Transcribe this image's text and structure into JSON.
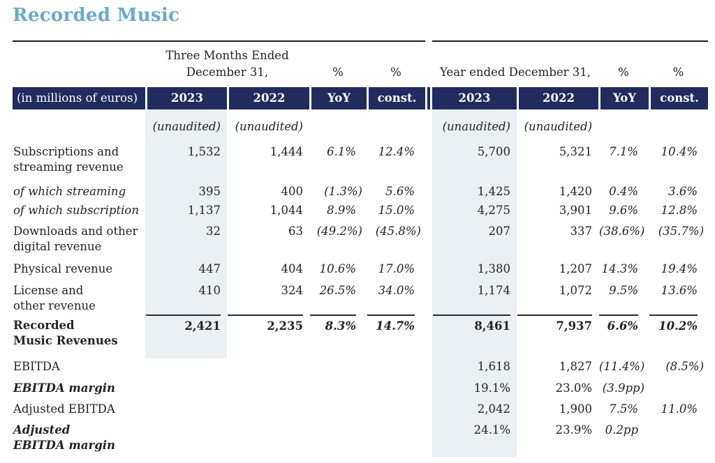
{
  "page": {
    "title": "Recorded Music"
  },
  "colors": {
    "accent_title": "#69AACA",
    "header_navy": "#222B5E",
    "column_highlight": "#EBF0F5",
    "text": "#232329"
  },
  "table": {
    "row_label_header": "(in millions of euros)",
    "quarter": {
      "period_label": "Three Months Ended\nDecember 31,",
      "pct_label_1": "%",
      "pct_label_2": "%",
      "col_headers": [
        "2023",
        "2022",
        "YoY",
        "const."
      ]
    },
    "year": {
      "period_label": "Year ended December 31,",
      "pct_label_1": "%",
      "pct_label_2": "%",
      "col_headers": [
        "2023",
        "2022",
        "YoY",
        "const."
      ]
    },
    "unaudited_label": "(unaudited)",
    "rows": [
      {
        "label": "Subscriptions and\nstreaming revenue",
        "style": "normal",
        "q": [
          "1,532",
          "1,444",
          "6.1%",
          "12.4%"
        ],
        "y": [
          "5,700",
          "5,321",
          "7.1%",
          "10.4%"
        ]
      },
      {
        "label": "of which streaming",
        "style": "italic",
        "q": [
          "395",
          "400",
          "(1.3%)",
          "5.6%"
        ],
        "y": [
          "1,425",
          "1,420",
          "0.4%",
          "3.6%"
        ]
      },
      {
        "label": "of which subscription",
        "style": "italic",
        "q": [
          "1,137",
          "1,044",
          "8.9%",
          "15.0%"
        ],
        "y": [
          "4,275",
          "3,901",
          "9.6%",
          "12.8%"
        ]
      },
      {
        "label": "Downloads and other\ndigital revenue",
        "style": "normal",
        "q": [
          "32",
          "63",
          "(49.2%)",
          "(45.8%)"
        ],
        "y": [
          "207",
          "337",
          "(38.6%)",
          "(35.7%)"
        ]
      },
      {
        "label": "Physical revenue",
        "style": "normal",
        "q": [
          "447",
          "404",
          "10.6%",
          "17.0%"
        ],
        "y": [
          "1,380",
          "1,207",
          "14.3%",
          "19.4%"
        ]
      },
      {
        "label": "License and\nother revenue",
        "style": "normal",
        "q": [
          "410",
          "324",
          "26.5%",
          "34.0%"
        ],
        "y": [
          "1,174",
          "1,072",
          "9.5%",
          "13.6%"
        ]
      },
      {
        "label": "Recorded\nMusic Revenues",
        "style": "bold",
        "total": true,
        "q": [
          "2,421",
          "2,235",
          "8.3%",
          "14.7%"
        ],
        "y": [
          "8,461",
          "7,937",
          "6.6%",
          "10.2%"
        ]
      },
      {
        "label": "EBITDA",
        "style": "normal",
        "q": [
          "",
          "",
          "",
          ""
        ],
        "y": [
          "1,618",
          "1,827",
          "(11.4%)",
          "(8.5%)"
        ]
      },
      {
        "label": "EBITDA margin",
        "style": "bold-italic",
        "q": [
          "",
          "",
          "",
          ""
        ],
        "y": [
          "19.1%",
          "23.0%",
          "(3.9pp)",
          ""
        ]
      },
      {
        "label": "Adjusted EBITDA",
        "style": "normal",
        "q": [
          "",
          "",
          "",
          ""
        ],
        "y": [
          "2,042",
          "1,900",
          "7.5%",
          "11.0%"
        ]
      },
      {
        "label": "Adjusted\nEBITDA margin",
        "style": "bold-italic",
        "q": [
          "",
          "",
          "",
          ""
        ],
        "y": [
          "24.1%",
          "23.9%",
          "0.2pp",
          ""
        ]
      }
    ]
  }
}
